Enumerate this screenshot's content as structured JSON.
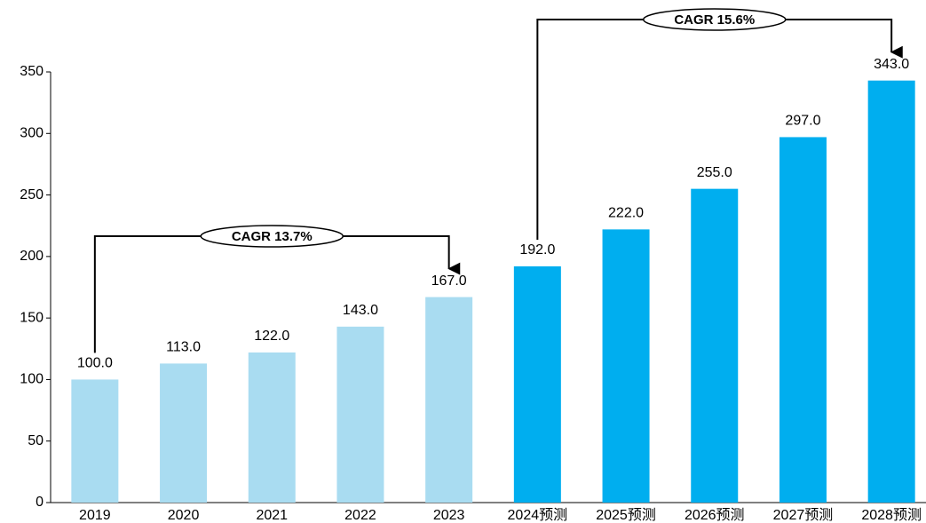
{
  "chart_data": {
    "type": "bar",
    "categories": [
      "2019",
      "2020",
      "2021",
      "2022",
      "2023",
      "2024预测",
      "2025预测",
      "2026预测",
      "2027预测",
      "2028预测"
    ],
    "values": [
      100,
      113,
      122,
      143,
      167,
      192,
      222,
      255,
      297,
      343
    ],
    "value_labels": [
      "100.0",
      "113.0",
      "122.0",
      "143.0",
      "167.0",
      "192.0",
      "222.0",
      "255.0",
      "297.0",
      "343.0"
    ],
    "colors": [
      "#a9dcf1",
      "#a9dcf1",
      "#a9dcf1",
      "#a9dcf1",
      "#a9dcf1",
      "#00aeef",
      "#00aeef",
      "#00aeef",
      "#00aeef",
      "#00aeef"
    ],
    "ylim": [
      0,
      350
    ],
    "yticks": [
      0,
      50,
      100,
      150,
      200,
      250,
      300,
      350
    ],
    "grid": false,
    "annotations": [
      "CAGR 13.7%",
      "CAGR 15.6%"
    ]
  }
}
